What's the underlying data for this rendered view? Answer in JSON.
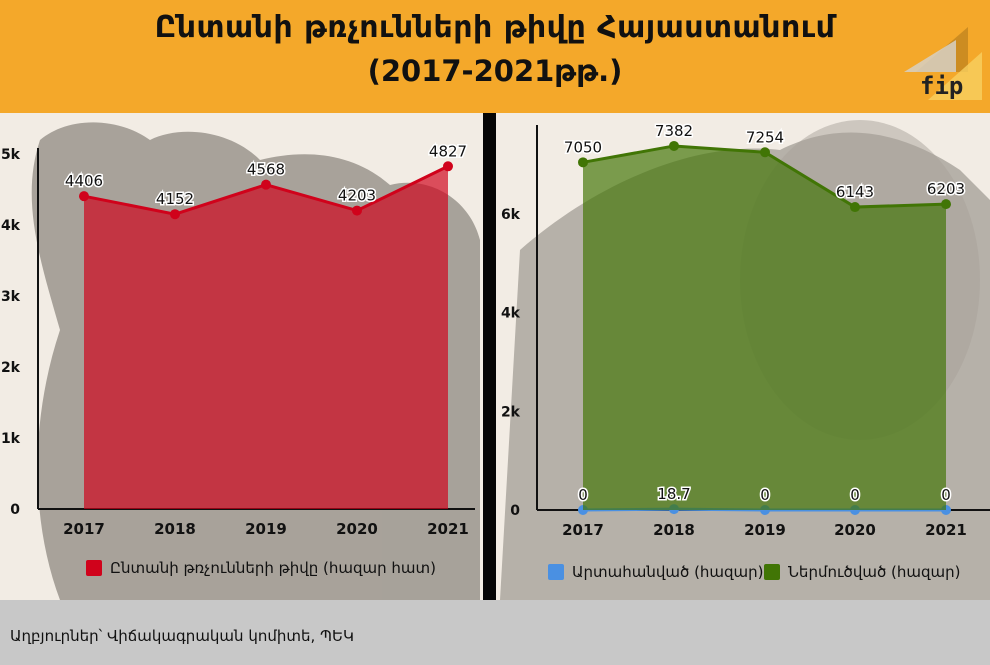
{
  "header": {
    "title_line1": "Ընտանի թռչունների թիվը Հայաստանում",
    "title_line2": "(2017-2021թթ.)",
    "logo_text": "fip"
  },
  "footer": {
    "source": "Աղբյուրներ՝ Վիճակագրական կոմիտե, ՊԵԿ"
  },
  "chart_data": [
    {
      "type": "area",
      "categories": [
        "2017",
        "2018",
        "2019",
        "2020",
        "2021"
      ],
      "series": [
        {
          "name": "Ընտանի թռչունների թիվը (հազար հատ)",
          "values": [
            4406,
            4152,
            4568,
            4203,
            4827
          ],
          "color": "#d0021b"
        }
      ],
      "data_labels": [
        "4406",
        "4152",
        "4568",
        "4203",
        "4827"
      ],
      "y_ticks": [
        "0",
        "1k",
        "2k",
        "3k",
        "4k",
        "5k"
      ],
      "ylim": [
        0,
        5000
      ],
      "legend": "bottom"
    },
    {
      "type": "area",
      "categories": [
        "2017",
        "2018",
        "2019",
        "2020",
        "2021"
      ],
      "series": [
        {
          "name": "Արտահանված (հազար)",
          "values": [
            0,
            18.7,
            0,
            0,
            0
          ],
          "color": "#4a90e2"
        },
        {
          "name": "Ներմուծված (հազար)",
          "values": [
            7050,
            7382,
            7254,
            6143,
            6203
          ],
          "color": "#417505"
        }
      ],
      "data_labels": {
        "export": [
          "0",
          "18.7",
          "0",
          "0",
          "0"
        ],
        "import": [
          "7050",
          "7382",
          "7254",
          "6143",
          "6203"
        ]
      },
      "y_ticks": [
        "0",
        "2k",
        "4k",
        "6k"
      ],
      "ylim": [
        0,
        7300
      ],
      "legend": "bottom"
    }
  ]
}
